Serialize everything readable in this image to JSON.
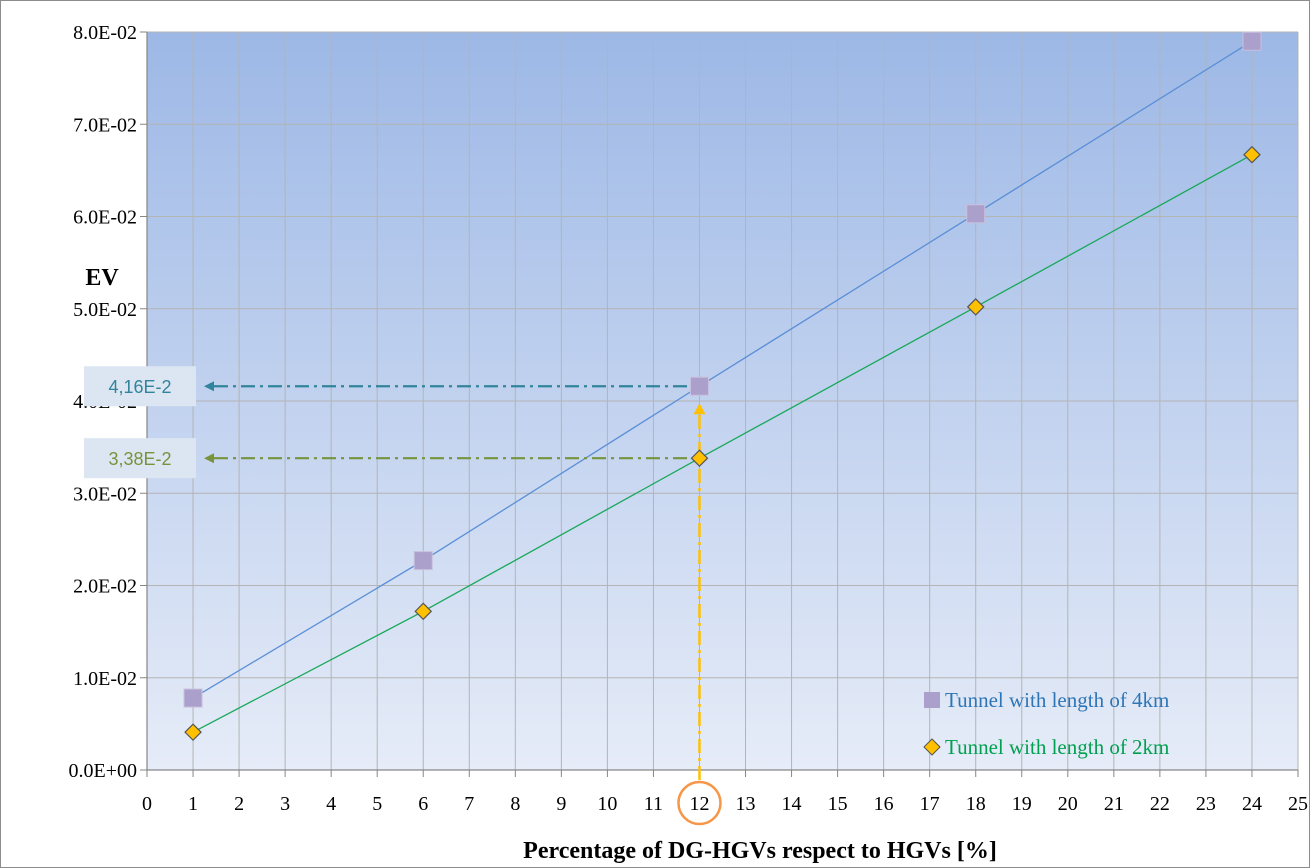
{
  "chart_data": {
    "type": "line",
    "title": "",
    "xlabel": "Percentage of DG-HGVs respect to HGVs [%]",
    "ylabel": "EV",
    "xlim": [
      0,
      25
    ],
    "ylim": [
      0,
      0.08
    ],
    "x_ticks": [
      "0",
      "1",
      "2",
      "3",
      "4",
      "5",
      "6",
      "7",
      "8",
      "9",
      "10",
      "11",
      "12",
      "13",
      "14",
      "15",
      "16",
      "17",
      "18",
      "19",
      "20",
      "21",
      "22",
      "23",
      "24",
      "25"
    ],
    "y_ticks": [
      "0.0E+00",
      "1.0E-02",
      "2.0E-02",
      "3.0E-02",
      "4.0E-02",
      "5.0E-02",
      "6.0E-02",
      "7.0E-02",
      "8.0E-02"
    ],
    "grid": true,
    "legend_position": "bottom-right",
    "series": [
      {
        "name": "Tunnel with length of 4km",
        "x": [
          1,
          6,
          12,
          18,
          24
        ],
        "values": [
          0.0078,
          0.0227,
          0.0416,
          0.0603,
          0.079
        ],
        "line_color": "#5b8fd6",
        "marker": "square",
        "marker_color": "#aba0cc",
        "legend_color": "#2e75b6"
      },
      {
        "name": "Tunnel with length of 2km",
        "x": [
          1,
          6,
          12,
          18,
          24
        ],
        "values": [
          0.0041,
          0.0172,
          0.0338,
          0.0502,
          0.0667
        ],
        "line_color": "#19a85a",
        "marker": "diamond",
        "marker_color": "#ffc000",
        "legend_color": "#00a050"
      }
    ],
    "annotations": [
      {
        "text": "4,16E-2",
        "x": 12,
        "y": 0.0416,
        "color": "#31849b"
      },
      {
        "text": "3,38E-2",
        "x": 12,
        "y": 0.0338,
        "color": "#77933c"
      }
    ],
    "highlight": {
      "x": 12,
      "tick_label": "12",
      "circle_color": "#f79646",
      "arrow_color": "#ffc000"
    }
  }
}
